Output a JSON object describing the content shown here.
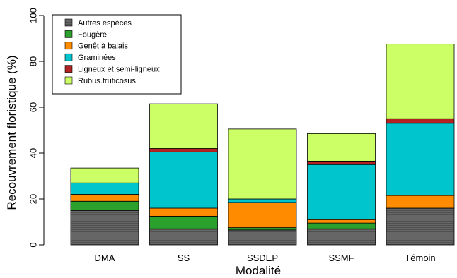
{
  "chart_data": {
    "type": "bar",
    "stacked": true,
    "title": "",
    "xlabel": "Modalité",
    "ylabel": "Recouvrement floristique (%)",
    "ylim": [
      0,
      100
    ],
    "yticks": [
      0,
      20,
      40,
      60,
      80,
      100
    ],
    "grid": false,
    "legend_position": "top-left",
    "categories": [
      "DMA",
      "SS",
      "SSDEP",
      "SSMF",
      "Témoin"
    ],
    "series": [
      {
        "name": "Autres espèces",
        "color": "#666666",
        "values": [
          15,
          7,
          6.5,
          7,
          16
        ]
      },
      {
        "name": "Fougère",
        "color": "#2ca02c",
        "values": [
          4,
          5.5,
          1,
          2.5,
          0
        ]
      },
      {
        "name": "Genêt à balais",
        "color": "#ff8c00",
        "values": [
          3,
          3.5,
          11,
          1.5,
          5.5
        ]
      },
      {
        "name": "Graminées",
        "color": "#00c5cd",
        "values": [
          5,
          24.5,
          1.5,
          24,
          31.5
        ]
      },
      {
        "name": "Ligneux et semi-ligneux",
        "color": "#b22222",
        "values": [
          0,
          1.5,
          0,
          1.5,
          2
        ]
      },
      {
        "name": "Rubus.fruticosus",
        "color": "#ccff66",
        "values": [
          6.5,
          19.5,
          30.5,
          12,
          32.5
        ]
      }
    ]
  }
}
